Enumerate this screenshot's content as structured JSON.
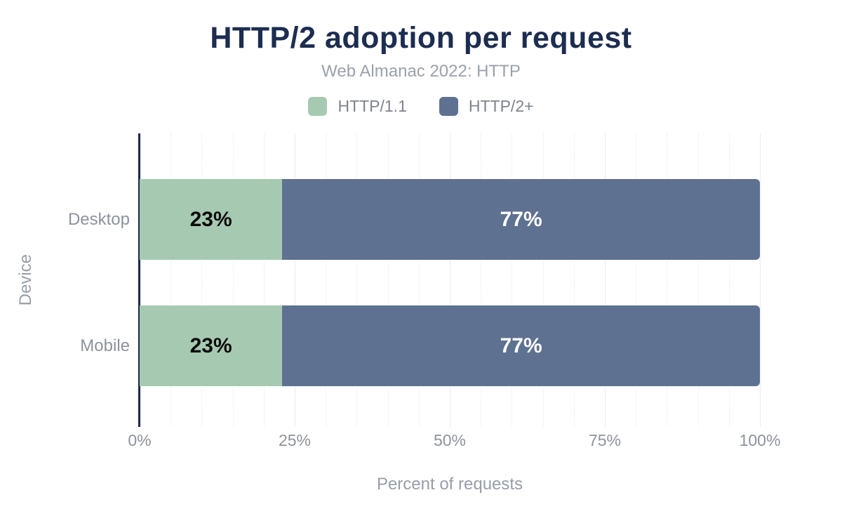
{
  "header": {
    "title": "HTTP/2 adoption per request",
    "subtitle": "Web Almanac 2022: HTTP"
  },
  "legend": [
    {
      "label": "HTTP/1.1",
      "color": "#a6c9b2"
    },
    {
      "label": "HTTP/2+",
      "color": "#5e7190"
    }
  ],
  "chart_data": {
    "type": "bar",
    "orientation": "horizontal",
    "stacked": true,
    "title": "HTTP/2 adoption per request",
    "subtitle": "Web Almanac 2022: HTTP",
    "categories": [
      "Desktop",
      "Mobile"
    ],
    "series": [
      {
        "name": "HTTP/1.1",
        "color": "#a6c9b2",
        "label_color": "#0b0b0b",
        "values": [
          23,
          23
        ]
      },
      {
        "name": "HTTP/2+",
        "color": "#5e7190",
        "label_color": "#ffffff",
        "values": [
          77,
          77
        ]
      }
    ],
    "bar_labels": [
      [
        "23%",
        "77%"
      ],
      [
        "23%",
        "77%"
      ]
    ],
    "xlabel": "Percent of requests",
    "ylabel": "Device",
    "xlim": [
      0,
      100
    ],
    "xticks": [
      {
        "label": "0%",
        "value": 0
      },
      {
        "label": "25%",
        "value": 25
      },
      {
        "label": "50%",
        "value": 50
      },
      {
        "label": "75%",
        "value": 75
      },
      {
        "label": "100%",
        "value": 100
      }
    ],
    "grid": {
      "minor_step": 5,
      "major_step": 25,
      "minor_style": "dotted",
      "major_style": "solid"
    },
    "legend_position": "top"
  },
  "colors": {
    "title": "#1c2d50",
    "axis_line": "#192a46",
    "grid_major": "#ececec",
    "grid_minor": "#e7eae7",
    "muted_text": "#8d939d"
  }
}
